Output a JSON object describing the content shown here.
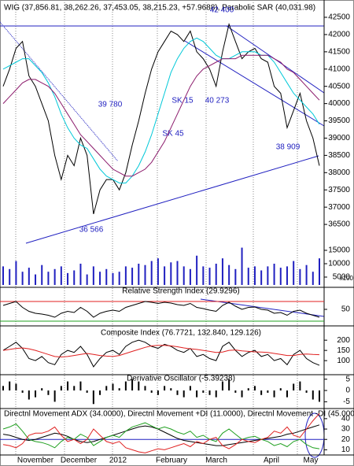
{
  "chart_data": [
    {
      "type": "line",
      "title": "WIG (37,856.81, 38,262.26, 37,453.05, 38,215.23, +57.9688), Parabolic SAR (40,031.98)",
      "ylim": [
        36160,
        42910
      ],
      "yticks": [
        36500,
        37000,
        37500,
        38000,
        38500,
        39000,
        39500,
        40000,
        40500,
        41000,
        41500,
        42000,
        42500
      ],
      "annotations": [
        "42 400",
        "39 780",
        "SK 15",
        "40 273",
        "SK 45",
        "38 909",
        "36 566"
      ],
      "series": [
        {
          "color": "#000000",
          "values": [
            40500,
            41000,
            41600,
            41800,
            40800,
            40500,
            40000,
            39500,
            38500,
            37800,
            38500,
            38200,
            39000,
            38500,
            36800,
            37500,
            37800,
            37800,
            37500,
            38000,
            38800,
            39500,
            40300,
            41000,
            41500,
            41800,
            42100,
            42000,
            41800,
            42100,
            41500,
            41300,
            41000,
            40500,
            41500,
            42300,
            41800,
            41300,
            41500,
            41600,
            41300,
            41200,
            40500,
            40300,
            39300,
            39800,
            40300,
            39500,
            39000,
            38200
          ]
        },
        {
          "color": "#00c8d8",
          "values": [
            41000,
            41100,
            41200,
            41300,
            41300,
            41100,
            40900,
            40600,
            40200,
            39700,
            39300,
            39000,
            38800,
            38700,
            38400,
            38100,
            37900,
            37800,
            37700,
            37700,
            37900,
            38200,
            38600,
            39100,
            39700,
            40300,
            40900,
            41300,
            41600,
            41800,
            41900,
            41800,
            41600,
            41400,
            41300,
            41300,
            41400,
            41500,
            41500,
            41500,
            41400,
            41400,
            41200,
            40900,
            40600,
            40300,
            40100,
            39900,
            39700,
            39400
          ]
        },
        {
          "color": "#8b1a6b",
          "values": [
            40000,
            40200,
            40400,
            40600,
            40700,
            40700,
            40600,
            40500,
            40300,
            40000,
            39700,
            39400,
            39100,
            38900,
            38700,
            38500,
            38300,
            38100,
            38000,
            37900,
            37900,
            38000,
            38100,
            38300,
            38600,
            38900,
            39300,
            39700,
            40100,
            40500,
            40800,
            41000,
            41100,
            41200,
            41300,
            41300,
            41300,
            41400,
            41400,
            41400,
            41400,
            41400,
            41300,
            41200,
            41000,
            40900,
            40700,
            40500,
            40300,
            40100
          ]
        }
      ]
    },
    {
      "type": "bar",
      "unit_label": "x100",
      "ylim": [
        2060,
        20290
      ],
      "yticks": [
        5000,
        10000,
        15000
      ],
      "color": "#2020c0",
      "values": [
        9000,
        8000,
        11000,
        7000,
        8500,
        6000,
        9500,
        7000,
        8000,
        9000,
        6500,
        7500,
        10000,
        6000,
        9000,
        7000,
        8000,
        6500,
        7000,
        9000,
        8500,
        10000,
        9500,
        11000,
        12000,
        9000,
        10500,
        11000,
        9000,
        8000,
        13000,
        9000,
        8500,
        10000,
        12000,
        9500,
        8000,
        16000,
        8500,
        9000,
        7500,
        9000,
        10000,
        8500,
        9000,
        11000,
        8000,
        9500,
        7000,
        12000
      ]
    },
    {
      "type": "line",
      "title": "Relative Strength Index (29.9296)",
      "ylim": [
        8,
        104
      ],
      "yticks": [
        50
      ],
      "levels": [
        {
          "value": 70,
          "color": "#e02020"
        },
        {
          "value": 20,
          "color": "#20a020"
        }
      ],
      "series": [
        {
          "color": "#000000",
          "values": [
            60,
            65,
            70,
            55,
            45,
            40,
            38,
            35,
            30,
            40,
            45,
            42,
            55,
            45,
            30,
            40,
            45,
            48,
            45,
            55,
            60,
            65,
            70,
            68,
            65,
            68,
            66,
            62,
            60,
            65,
            55,
            52,
            48,
            45,
            60,
            68,
            58,
            50,
            55,
            56,
            50,
            48,
            40,
            42,
            35,
            45,
            48,
            40,
            35,
            30
          ]
        }
      ]
    },
    {
      "type": "line",
      "title": "Composite Index (76.7721, 132.840, 129.126)",
      "ylim": [
        35,
        270
      ],
      "yticks": [
        100,
        150,
        200
      ],
      "series": [
        {
          "color": "#000000",
          "values": [
            150,
            170,
            190,
            160,
            110,
            100,
            120,
            90,
            80,
            130,
            150,
            140,
            170,
            130,
            70,
            110,
            140,
            150,
            130,
            170,
            190,
            200,
            190,
            170,
            160,
            180,
            170,
            150,
            140,
            160,
            120,
            130,
            110,
            100,
            170,
            190,
            150,
            120,
            140,
            150,
            120,
            130,
            100,
            110,
            80,
            130,
            150,
            110,
            90,
            77
          ]
        },
        {
          "color": "#e02020",
          "values": [
            150,
            155,
            160,
            162,
            158,
            150,
            140,
            130,
            120,
            118,
            120,
            125,
            130,
            135,
            130,
            125,
            122,
            120,
            125,
            135,
            145,
            155,
            165,
            172,
            175,
            175,
            172,
            168,
            162,
            158,
            155,
            150,
            145,
            140,
            142,
            150,
            152,
            148,
            145,
            143,
            142,
            140,
            135,
            130,
            125,
            125,
            130,
            132,
            130,
            129
          ]
        }
      ]
    },
    {
      "type": "bar",
      "title": "Derivative Oscillator (-5.39238)",
      "ylim": [
        -8,
        7
      ],
      "yticks": [
        -5,
        0,
        5
      ],
      "color": "#000000",
      "values": [
        2,
        4,
        3,
        -1,
        -4,
        -3,
        1,
        -2,
        -5,
        2,
        4,
        2,
        4,
        -1,
        -6,
        -2,
        2,
        3,
        1,
        4,
        5,
        4,
        2,
        -1,
        -2,
        2,
        1,
        -2,
        -3,
        2,
        -3,
        -1,
        -2,
        -3,
        4,
        5,
        -1,
        -3,
        1,
        2,
        -2,
        -1,
        -3,
        1,
        -3,
        3,
        4,
        -1,
        -4,
        -5
      ]
    },
    {
      "type": "line",
      "title": "Directnl Movement ADX (34.0000), Directnl Movement +DI (11.0000), Directnl Movement -DI (45.0000)",
      "ylim": [
        5,
        49
      ],
      "yticks": [
        10,
        20,
        30,
        40
      ],
      "levels": [
        {
          "value": 20,
          "color": "#2020c0"
        }
      ],
      "x_labels": [
        "November",
        "December",
        "2012",
        "February",
        "March",
        "April",
        "May"
      ],
      "series": [
        {
          "color": "#000000",
          "values": [
            25,
            24,
            22,
            20,
            19,
            20,
            22,
            24,
            26,
            25,
            23,
            20,
            18,
            17,
            18,
            20,
            22,
            24,
            26,
            28,
            30,
            32,
            33,
            32,
            30,
            27,
            24,
            21,
            19,
            18,
            17,
            16,
            15,
            14,
            14,
            15,
            16,
            17,
            18,
            19,
            20,
            21,
            22,
            23,
            25,
            26,
            28,
            30,
            32,
            34
          ]
        },
        {
          "color": "#20a020",
          "values": [
            30,
            32,
            35,
            28,
            20,
            18,
            17,
            15,
            12,
            18,
            22,
            20,
            25,
            22,
            14,
            18,
            22,
            24,
            22,
            28,
            32,
            34,
            36,
            33,
            30,
            32,
            30,
            27,
            25,
            28,
            22,
            24,
            20,
            18,
            26,
            30,
            25,
            20,
            22,
            23,
            20,
            18,
            14,
            16,
            13,
            18,
            20,
            15,
            12,
            11
          ]
        },
        {
          "color": "#e02020",
          "values": [
            15,
            14,
            12,
            16,
            24,
            26,
            26,
            28,
            32,
            24,
            18,
            20,
            16,
            20,
            30,
            24,
            18,
            16,
            18,
            12,
            10,
            8,
            7,
            9,
            11,
            10,
            12,
            14,
            16,
            13,
            18,
            16,
            20,
            22,
            14,
            11,
            15,
            20,
            18,
            17,
            20,
            22,
            28,
            26,
            32,
            24,
            22,
            30,
            38,
            45
          ]
        }
      ]
    }
  ]
}
